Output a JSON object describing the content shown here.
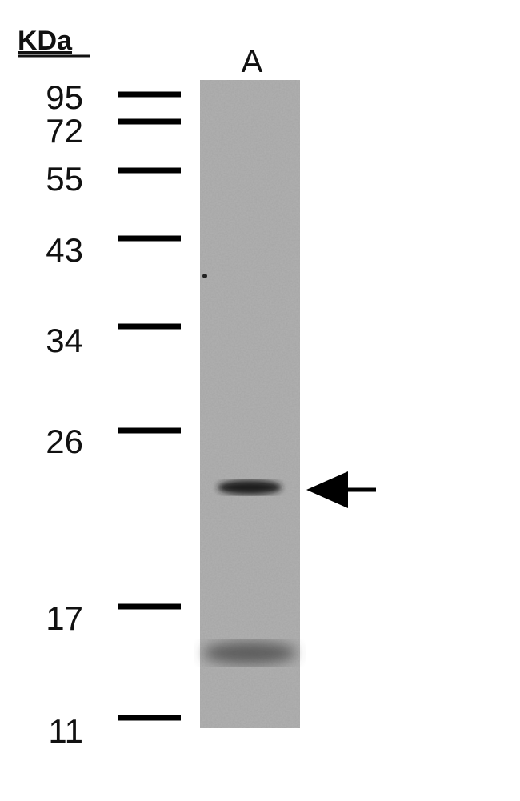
{
  "header": {
    "unit": "KDa",
    "lane": "A"
  },
  "markers": [
    "95",
    "72",
    "55",
    "43",
    "34",
    "26",
    "17",
    "11"
  ]
}
